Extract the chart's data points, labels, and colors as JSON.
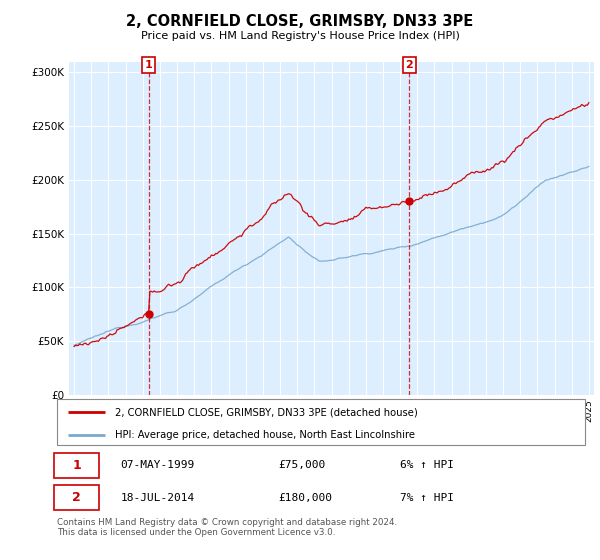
{
  "title": "2, CORNFIELD CLOSE, GRIMSBY, DN33 3PE",
  "subtitle": "Price paid vs. HM Land Registry's House Price Index (HPI)",
  "legend_line1": "2, CORNFIELD CLOSE, GRIMSBY, DN33 3PE (detached house)",
  "legend_line2": "HPI: Average price, detached house, North East Lincolnshire",
  "sale1_date": "07-MAY-1999",
  "sale1_price": "£75,000",
  "sale1_hpi": "6% ↑ HPI",
  "sale1_year": 1999.35,
  "sale1_value": 75000,
  "sale2_date": "18-JUL-2014",
  "sale2_price": "£180,000",
  "sale2_hpi": "7% ↑ HPI",
  "sale2_year": 2014.54,
  "sale2_value": 180000,
  "red_color": "#cc0000",
  "blue_color": "#7aaacc",
  "plot_bg_color": "#ddeeff",
  "footer": "Contains HM Land Registry data © Crown copyright and database right 2024.\nThis data is licensed under the Open Government Licence v3.0.",
  "ylim": [
    0,
    310000
  ],
  "yticks": [
    0,
    50000,
    100000,
    150000,
    200000,
    250000,
    300000
  ],
  "xlim_start": 1994.7,
  "xlim_end": 2025.3
}
